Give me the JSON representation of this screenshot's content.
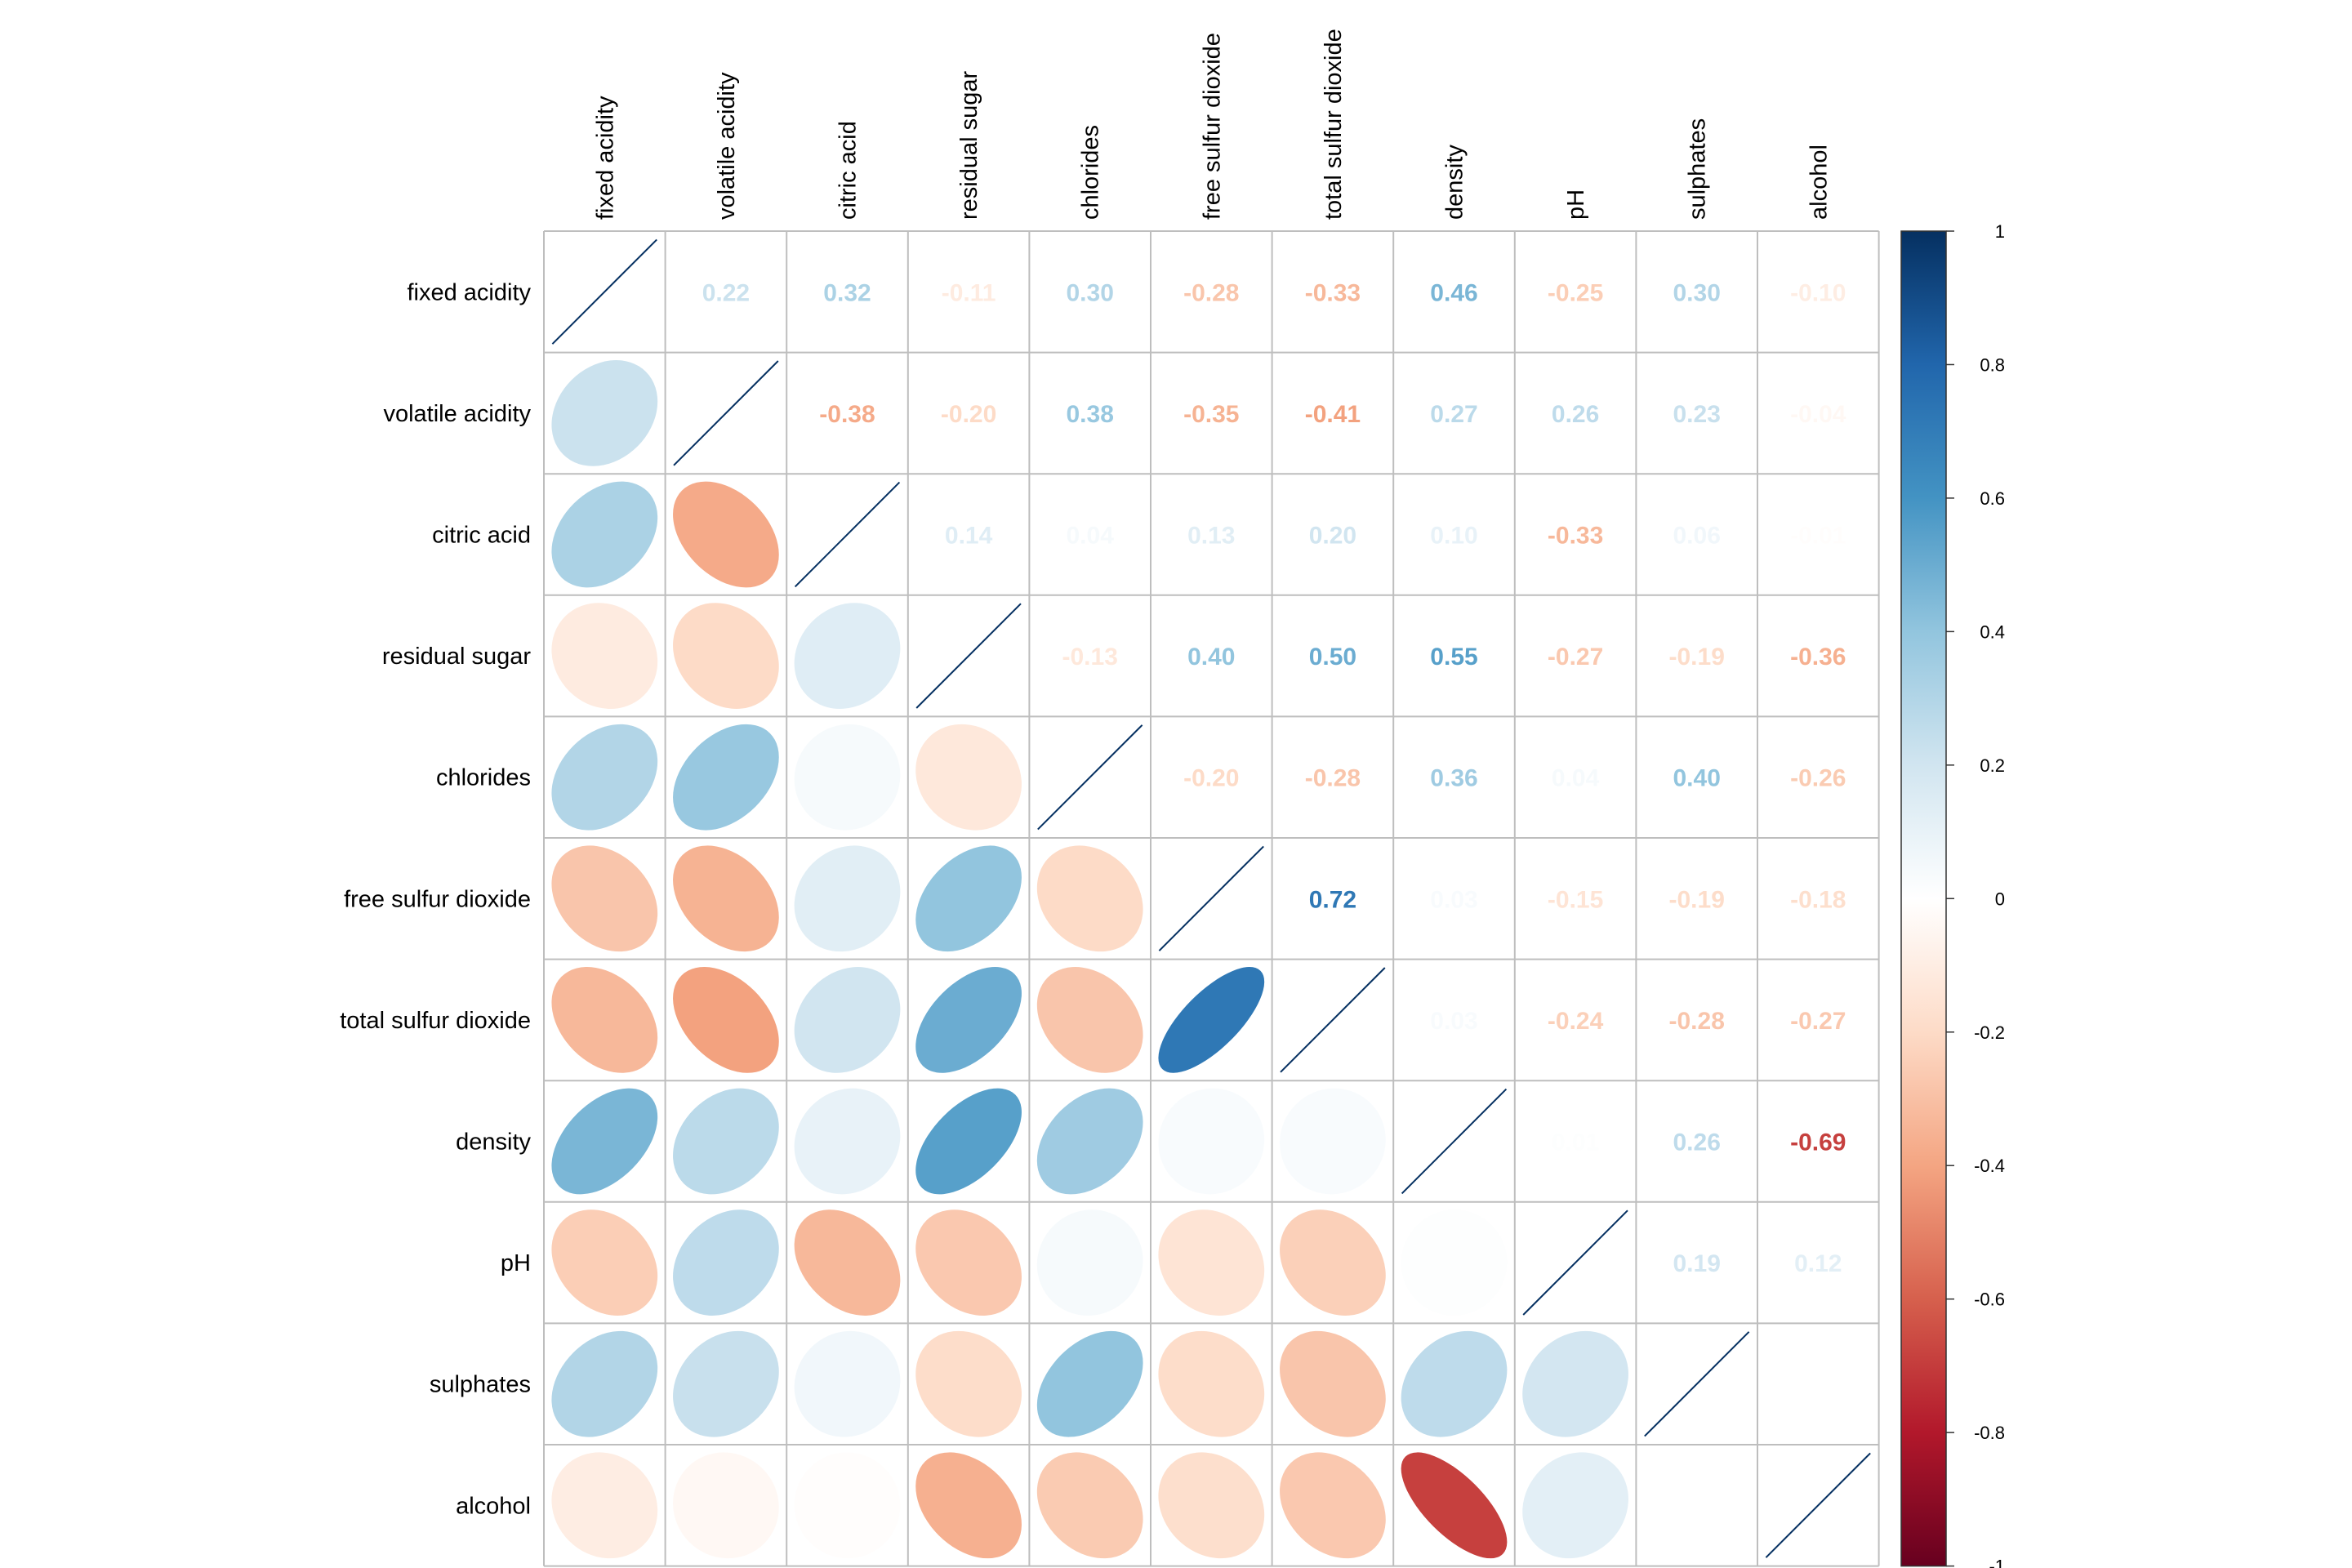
{
  "chart_data": {
    "type": "heatmap",
    "style": "correlation-matrix, lower triangle ellipses, upper triangle numbers, diagonal lines",
    "variables": [
      "fixed acidity",
      "volatile acidity",
      "citric acid",
      "residual sugar",
      "chlorides",
      "free sulfur dioxide",
      "total sulfur dioxide",
      "density",
      "pH",
      "sulphates",
      "alcohol"
    ],
    "matrix": [
      [
        1.0,
        0.22,
        0.32,
        -0.11,
        0.3,
        -0.28,
        -0.33,
        0.46,
        -0.25,
        0.3,
        -0.1
      ],
      [
        0.22,
        1.0,
        -0.38,
        -0.2,
        0.38,
        -0.35,
        -0.41,
        0.27,
        0.26,
        0.23,
        -0.04
      ],
      [
        0.32,
        -0.38,
        1.0,
        0.14,
        0.04,
        0.13,
        0.2,
        0.1,
        -0.33,
        0.06,
        -0.01
      ],
      [
        -0.11,
        -0.2,
        0.14,
        1.0,
        -0.13,
        0.4,
        0.5,
        0.55,
        -0.27,
        -0.19,
        -0.36
      ],
      [
        0.3,
        0.38,
        0.04,
        -0.13,
        1.0,
        -0.2,
        -0.28,
        0.36,
        0.04,
        0.4,
        -0.26
      ],
      [
        -0.28,
        -0.35,
        0.13,
        0.4,
        -0.2,
        1.0,
        0.72,
        0.03,
        -0.15,
        -0.19,
        -0.18
      ],
      [
        -0.33,
        -0.41,
        0.2,
        0.5,
        -0.28,
        0.72,
        1.0,
        0.03,
        -0.24,
        -0.28,
        -0.27
      ],
      [
        0.46,
        0.27,
        0.1,
        0.55,
        0.36,
        0.03,
        0.03,
        1.0,
        0.01,
        0.26,
        -0.69
      ],
      [
        -0.25,
        0.26,
        -0.33,
        -0.27,
        0.04,
        -0.15,
        -0.24,
        0.01,
        1.0,
        0.19,
        0.12
      ],
      [
        0.3,
        0.23,
        0.06,
        -0.19,
        0.4,
        -0.19,
        -0.28,
        0.26,
        0.19,
        1.0,
        0.0
      ],
      [
        -0.1,
        -0.04,
        -0.01,
        -0.36,
        -0.26,
        -0.18,
        -0.27,
        -0.69,
        0.12,
        0.0,
        1.0
      ]
    ],
    "colorbar": {
      "range": [
        -1,
        1
      ],
      "ticks": [
        "1",
        "0.8",
        "0.6",
        "0.4",
        "0.2",
        "0",
        "-0.2",
        "-0.4",
        "-0.6",
        "-0.8",
        "-1"
      ]
    },
    "colors": {
      "strong_negative": "#67001F",
      "negative": "#D6604D",
      "neutral": "#FFFFFF",
      "positive": "#4393C3",
      "strong_positive": "#053061",
      "grid": "#BEBEBE",
      "diagonal_line": "#053061"
    },
    "grid": true
  }
}
